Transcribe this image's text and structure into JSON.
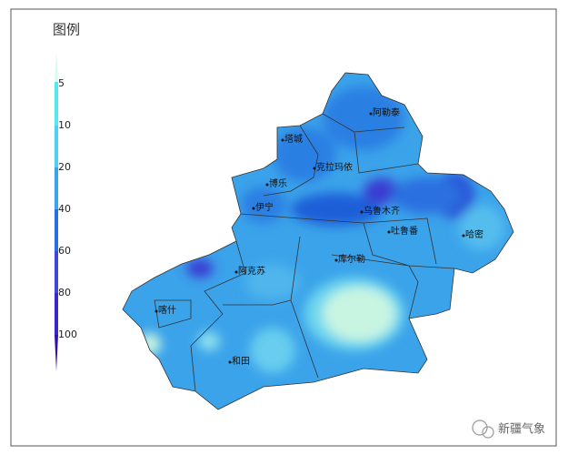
{
  "legend": {
    "title": "图例",
    "ticks": [
      5,
      10,
      20,
      40,
      60,
      80,
      100
    ]
  },
  "places": [
    "阿勒泰",
    "塔城",
    "克拉玛依",
    "博乐",
    "伊宁",
    "乌鲁木齐",
    "吐鲁番",
    "哈密",
    "阿克苏",
    "库尔勒",
    "喀什",
    "和田"
  ],
  "watermark": "新疆气象"
}
